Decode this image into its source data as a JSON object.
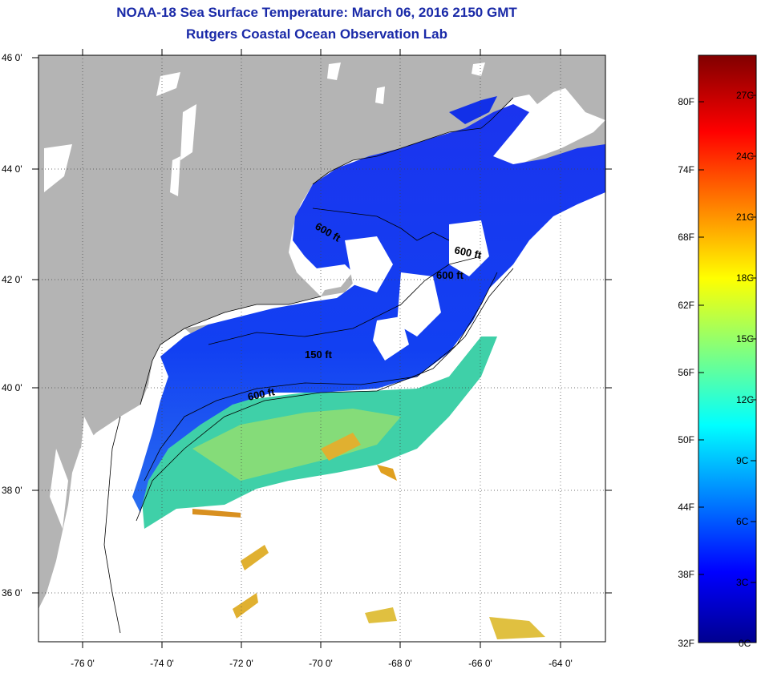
{
  "title": {
    "line1": "NOAA-18 Sea Surface Temperature:  March 06, 2016 2150 GMT",
    "line2": "Rutgers Coastal Ocean Observation Lab"
  },
  "map": {
    "lat_ticks": [
      "46 0'",
      "44 0'",
      "42 0'",
      "40 0'",
      "38 0'",
      "36 0'"
    ],
    "lon_ticks": [
      "-76 0'",
      "-74 0'",
      "-72 0'",
      "-70 0'",
      "-68 0'",
      "-66 0'",
      "-64 0'"
    ],
    "land_color": "#b4b4b4",
    "cloud_color": "#ffffff",
    "contour_labels": [
      "600 ft",
      "600 ft",
      "600 ft",
      "150 ft",
      "600 ft"
    ]
  },
  "colorbar": {
    "fahrenheit": [
      "80F",
      "74F",
      "68F",
      "62F",
      "56F",
      "50F",
      "44F",
      "38F",
      "32F"
    ],
    "celsius": [
      "27C",
      "24C",
      "21C",
      "18C",
      "15C",
      "12C",
      "9C",
      "6C",
      "3C",
      "0C"
    ]
  }
}
